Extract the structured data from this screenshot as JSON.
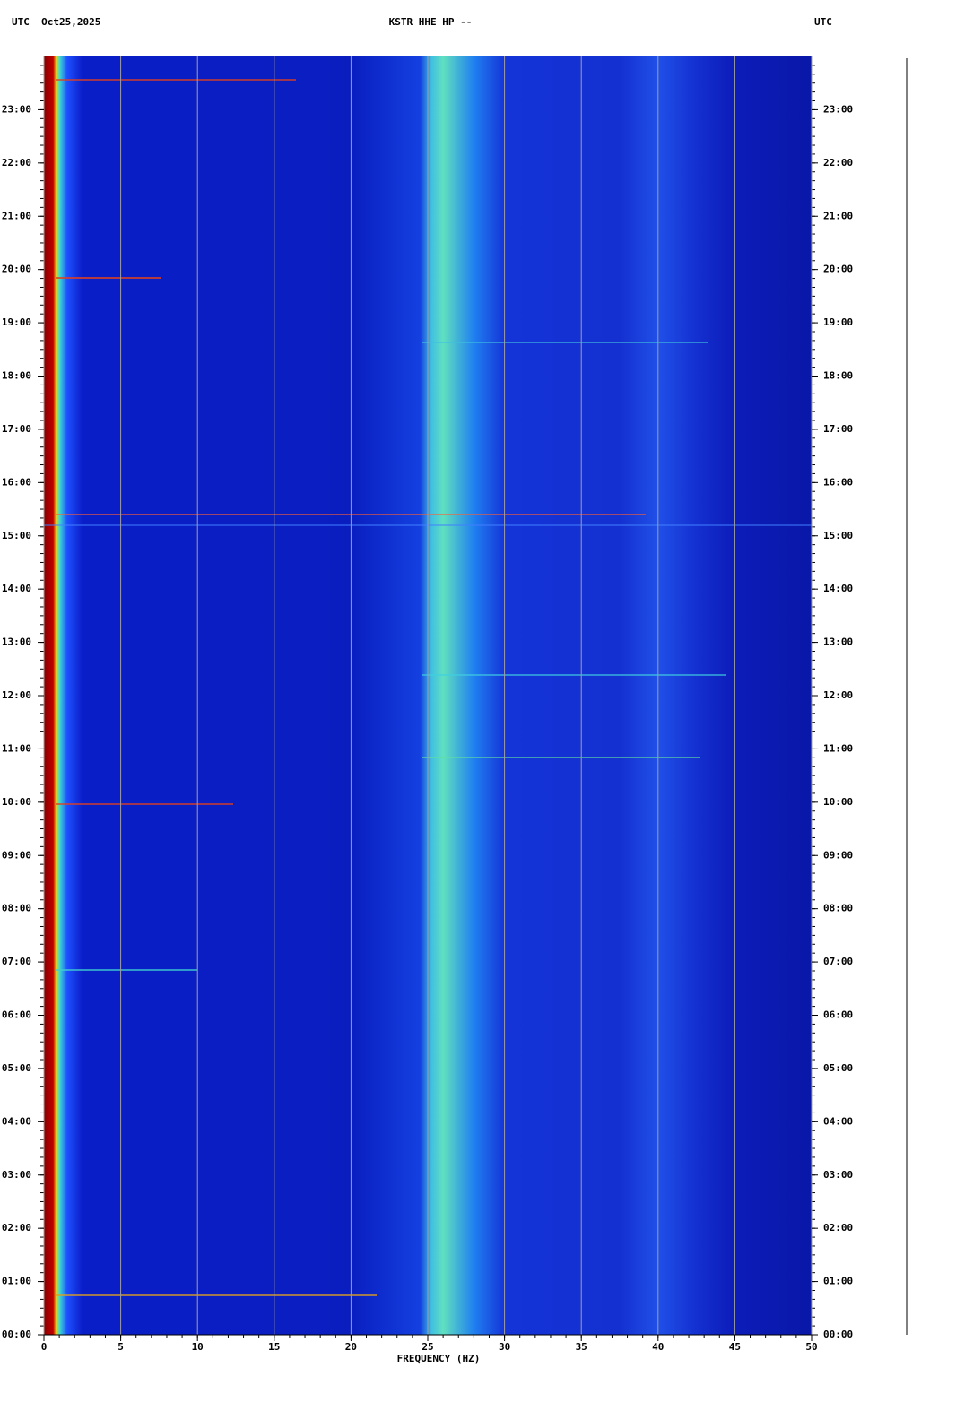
{
  "chart_data": {
    "type": "spectrogram",
    "header_left": "UTC  Oct25,2025",
    "title": "KSTR HHE HP --",
    "header_right": "UTC",
    "x_label": "FREQUENCY (HZ)",
    "xlim": [
      0,
      50
    ],
    "xticks": [
      0,
      5,
      10,
      15,
      20,
      25,
      30,
      35,
      40,
      45,
      50
    ],
    "ylim": [
      0,
      24
    ],
    "yticks": [
      {
        "value": 0,
        "label": "00:00"
      },
      {
        "value": 1,
        "label": "01:00"
      },
      {
        "value": 2,
        "label": "02:00"
      },
      {
        "value": 3,
        "label": "03:00"
      },
      {
        "value": 4,
        "label": "04:00"
      },
      {
        "value": 5,
        "label": "05:00"
      },
      {
        "value": 6,
        "label": "06:00"
      },
      {
        "value": 7,
        "label": "07:00"
      },
      {
        "value": 8,
        "label": "08:00"
      },
      {
        "value": 9,
        "label": "09:00"
      },
      {
        "value": 10,
        "label": "10:00"
      },
      {
        "value": 11,
        "label": "11:00"
      },
      {
        "value": 12,
        "label": "12:00"
      },
      {
        "value": 13,
        "label": "13:00"
      },
      {
        "value": 14,
        "label": "14:00"
      },
      {
        "value": 15,
        "label": "15:00"
      },
      {
        "value": 16,
        "label": "16:00"
      },
      {
        "value": 17,
        "label": "17:00"
      },
      {
        "value": 18,
        "label": "18:00"
      },
      {
        "value": 19,
        "label": "19:00"
      },
      {
        "value": 20,
        "label": "20:00"
      },
      {
        "value": 21,
        "label": "21:00"
      },
      {
        "value": 22,
        "label": "22:00"
      },
      {
        "value": 23,
        "label": "23:00"
      }
    ],
    "grid": true,
    "grid_color": "#a0a0a0"
  }
}
